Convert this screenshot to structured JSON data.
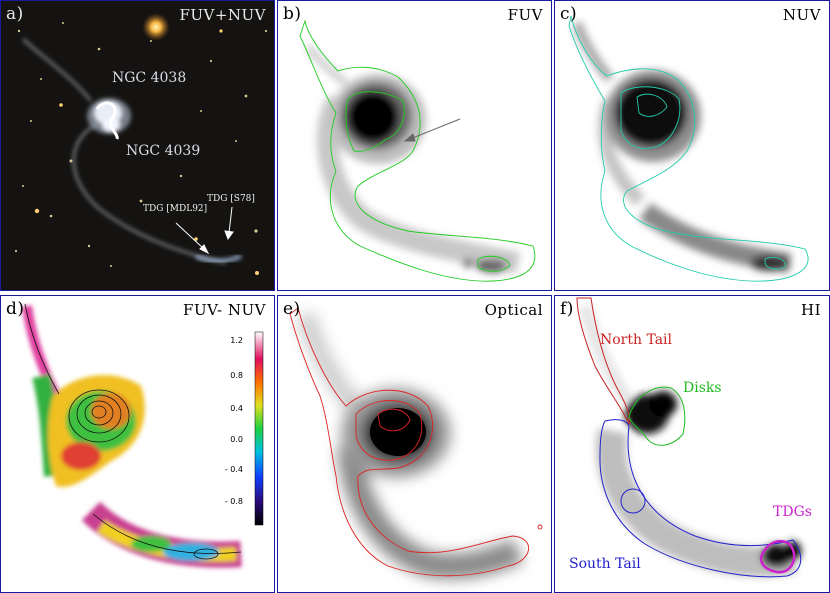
{
  "panels": {
    "a": {
      "label": "a)",
      "title": "FUV+NUV",
      "annotations": {
        "ngc4038": "NGC 4038",
        "ngc4039": "NGC 4039",
        "tdg_s78": "TDG [S78]",
        "tdg_mdl92": "TDG [MDL92]"
      }
    },
    "b": {
      "label": "b)",
      "title": "FUV"
    },
    "c": {
      "label": "c)",
      "title": "NUV"
    },
    "d": {
      "label": "d)",
      "title": "FUV- NUV",
      "colorbar_ticks": [
        "1.2",
        "0.8",
        "0.4",
        "0.0",
        "- 0.4",
        "- 0.8"
      ]
    },
    "e": {
      "label": "e)",
      "title": "Optical"
    },
    "f": {
      "label": "f)",
      "title": "HI",
      "regions": {
        "north_tail": "North Tail",
        "disks": "Disks",
        "tdgs": "TDGs",
        "south_tail": "South Tail"
      }
    }
  },
  "colors": {
    "panel_border": "#1a1aa0",
    "contour_fuv": "#22cc22",
    "contour_nuv": "#22ccaa",
    "contour_optical": "#dd2222",
    "region_north": "#cc2222",
    "region_disks": "#22bb22",
    "region_south": "#2222cc",
    "region_tdgs": "#cc22cc"
  }
}
